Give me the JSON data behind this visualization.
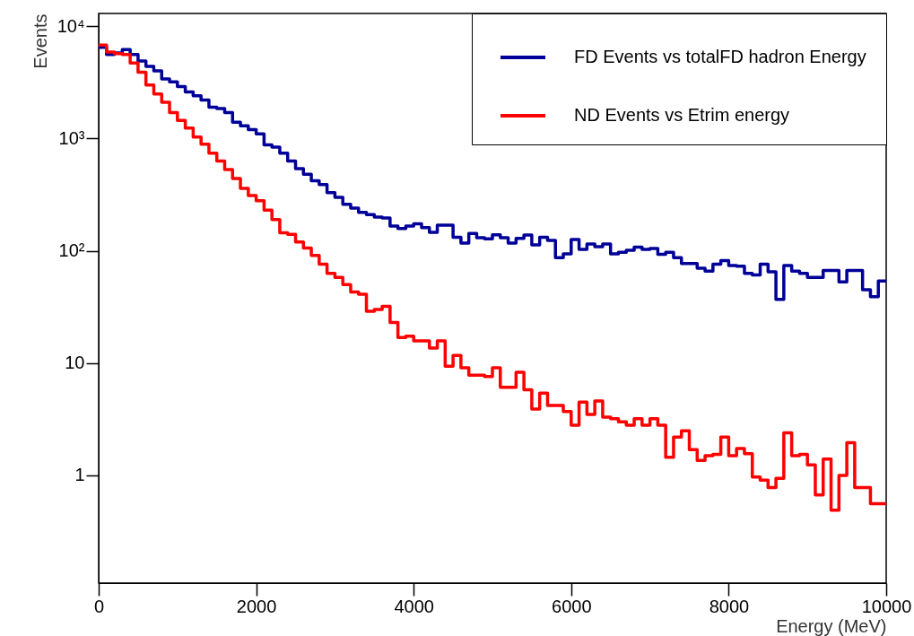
{
  "chart_data": {
    "type": "histogram",
    "xlabel": "Energy (MeV)",
    "ylabel": "Events",
    "bins": [
      0,
      100,
      200,
      300,
      400,
      500,
      600,
      700,
      800,
      900,
      1000,
      1100,
      1200,
      1300,
      1400,
      1500,
      1600,
      1700,
      1800,
      1900,
      2000,
      2100,
      2200,
      2300,
      2400,
      2500,
      2600,
      2700,
      2800,
      2900,
      3000,
      3100,
      3200,
      3300,
      3400,
      3500,
      3600,
      3700,
      3800,
      3900,
      4000,
      4100,
      4200,
      4300,
      4400,
      4500,
      4600,
      4700,
      4800,
      4900,
      5000,
      5100,
      5200,
      5300,
      5400,
      5500,
      5600,
      5700,
      5800,
      5900,
      6000,
      6100,
      6200,
      6300,
      6400,
      6500,
      6600,
      6700,
      6800,
      6900,
      7000,
      7100,
      7200,
      7300,
      7400,
      7500,
      7600,
      7700,
      7800,
      7900,
      8000,
      8100,
      8200,
      8300,
      8400,
      8500,
      8600,
      8700,
      8800,
      8900,
      9000,
      9100,
      9200,
      9300,
      9400,
      9500,
      9600,
      9700,
      9800,
      9900,
      10000
    ],
    "series": [
      {
        "name": "FD Events vs totalFD hadron Energy",
        "color": "#000099",
        "values": [
          6500,
          5600,
          5800,
          6200,
          5600,
          4900,
          4400,
          4000,
          3400,
          3200,
          2900,
          2600,
          2400,
          2200,
          1900,
          1850,
          1700,
          1400,
          1300,
          1200,
          1100,
          880,
          840,
          740,
          630,
          540,
          480,
          420,
          390,
          330,
          300,
          260,
          240,
          220,
          210,
          200,
          196,
          166,
          158,
          166,
          174,
          161,
          146,
          169,
          169,
          132,
          117,
          143,
          131,
          128,
          139,
          131,
          117,
          129,
          138,
          113,
          132,
          124,
          87,
          94,
          126,
          103,
          115,
          109,
          115,
          94,
          97,
          101,
          108,
          103,
          105,
          93,
          97,
          87,
          77,
          77,
          70,
          66,
          76,
          82,
          74,
          73,
          63,
          61,
          76,
          65,
          37,
          74,
          66,
          63,
          58,
          58,
          67,
          67,
          53,
          67,
          67,
          45,
          39,
          54
        ]
      },
      {
        "name": "ND Events vs Etrim energy",
        "color": "#ff0000",
        "values": [
          6800,
          5900,
          5700,
          5600,
          4700,
          3900,
          3000,
          2500,
          2100,
          1700,
          1450,
          1240,
          1030,
          890,
          740,
          630,
          530,
          440,
          360,
          310,
          280,
          230,
          190,
          145,
          140,
          120,
          106,
          91,
          76,
          63,
          58,
          50,
          43,
          41,
          29,
          30,
          32,
          23,
          16.9,
          17.4,
          15.8,
          15.8,
          13.6,
          15.8,
          9.4,
          11.7,
          9.1,
          7.8,
          7.8,
          7.6,
          9.1,
          6.1,
          6.1,
          8.3,
          5.8,
          3.9,
          5.4,
          4.2,
          4.2,
          3.7,
          2.8,
          4.5,
          3.5,
          4.6,
          3.3,
          3.2,
          3.0,
          2.8,
          3.2,
          2.8,
          3.2,
          2.8,
          1.45,
          2.2,
          2.5,
          1.7,
          1.36,
          1.5,
          1.54,
          2.2,
          1.5,
          1.74,
          1.56,
          0.97,
          0.91,
          0.78,
          0.94,
          2.4,
          1.5,
          1.54,
          1.24,
          0.67,
          1.4,
          0.49,
          1.0,
          1.96,
          0.78,
          0.78,
          0.56,
          0.56
        ]
      }
    ],
    "xlim": [
      0,
      10000
    ],
    "xticks": [
      0,
      2000,
      4000,
      6000,
      8000,
      10000
    ],
    "ylim": [
      0.11,
      13000
    ],
    "yticks": [
      1,
      10,
      {
        "value": 100,
        "label": "10²"
      },
      {
        "value": 1000,
        "label": "10³"
      },
      {
        "value": 10000,
        "label": "10⁴"
      }
    ],
    "log": true,
    "grid": false,
    "legend": "top right",
    "line_style": "solid"
  }
}
